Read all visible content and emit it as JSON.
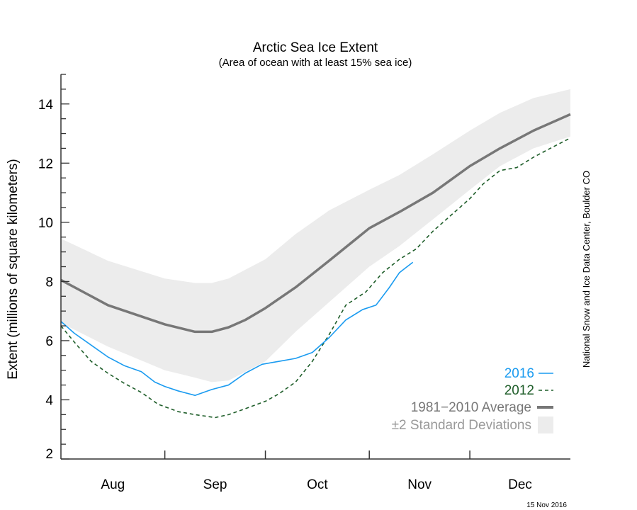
{
  "chart_data": {
    "type": "line",
    "title": "Arctic Sea Ice Extent",
    "subtitle": "(Area of ocean with at least 15% sea ice)",
    "ylabel": "Extent (millions of square kilometers)",
    "xlabel": "",
    "ylim": [
      2,
      15
    ],
    "xlim": [
      "08-01",
      "12-31"
    ],
    "yticks": [
      2,
      4,
      6,
      8,
      10,
      12,
      14
    ],
    "xtick_labels": [
      "Aug",
      "Sep",
      "Oct",
      "Nov",
      "Dec"
    ],
    "grid": false,
    "legend_position": "bottom-right",
    "credit": "National Snow and Ice Data Center, Boulder CO",
    "date_stamp": "15 Nov 2016",
    "colors": {
      "s2016": "#1a9bf0",
      "s2012": "#1f5e2a",
      "average": "#777777",
      "band": "#ececec"
    },
    "series": [
      {
        "name": "2016",
        "style": "solid",
        "x": [
          "08-01",
          "08-05",
          "08-10",
          "08-15",
          "08-20",
          "08-25",
          "08-29",
          "09-01",
          "09-05",
          "09-10",
          "09-15",
          "09-20",
          "09-25",
          "09-30",
          "10-05",
          "10-10",
          "10-15",
          "10-20",
          "10-25",
          "10-30",
          "11-03",
          "11-07",
          "11-10",
          "11-14"
        ],
        "y": [
          6.65,
          6.25,
          5.85,
          5.45,
          5.15,
          4.95,
          4.6,
          4.45,
          4.3,
          4.15,
          4.35,
          4.5,
          4.9,
          5.2,
          5.3,
          5.4,
          5.6,
          6.1,
          6.7,
          7.05,
          7.2,
          7.8,
          8.3,
          8.65
        ]
      },
      {
        "name": "2012",
        "style": "dashed",
        "x": [
          "08-01",
          "08-05",
          "08-10",
          "08-15",
          "08-20",
          "08-25",
          "08-30",
          "09-05",
          "09-10",
          "09-16",
          "09-20",
          "09-25",
          "10-01",
          "10-05",
          "10-10",
          "10-15",
          "10-20",
          "10-25",
          "10-31",
          "11-05",
          "11-10",
          "11-15",
          "11-20",
          "11-25",
          "12-01",
          "12-05",
          "12-10",
          "12-15",
          "12-20",
          "12-25",
          "12-31"
        ],
        "y": [
          6.5,
          5.95,
          5.3,
          4.9,
          4.55,
          4.25,
          3.85,
          3.6,
          3.5,
          3.4,
          3.5,
          3.7,
          3.95,
          4.2,
          4.6,
          5.3,
          6.2,
          7.2,
          7.65,
          8.3,
          8.75,
          9.1,
          9.7,
          10.2,
          10.8,
          11.3,
          11.75,
          11.85,
          12.2,
          12.5,
          12.85
        ]
      },
      {
        "name": "1981−2010 Average",
        "style": "thick",
        "x": [
          "08-01",
          "08-15",
          "09-01",
          "09-10",
          "09-15",
          "09-20",
          "09-25",
          "10-01",
          "10-10",
          "10-20",
          "11-01",
          "11-10",
          "11-20",
          "12-01",
          "12-10",
          "12-20",
          "12-31"
        ],
        "y": [
          8.05,
          7.2,
          6.55,
          6.3,
          6.3,
          6.45,
          6.7,
          7.1,
          7.8,
          8.7,
          9.8,
          10.35,
          11.0,
          11.9,
          12.5,
          13.1,
          13.65
        ]
      }
    ],
    "band": {
      "name": "±2 Standard Deviations",
      "x": [
        "08-01",
        "08-15",
        "09-01",
        "09-10",
        "09-15",
        "09-20",
        "10-01",
        "10-10",
        "10-20",
        "11-01",
        "11-10",
        "11-20",
        "12-01",
        "12-10",
        "12-20",
        "12-31"
      ],
      "upper": [
        9.45,
        8.7,
        8.1,
        7.95,
        7.95,
        8.1,
        8.75,
        9.6,
        10.4,
        11.1,
        11.6,
        12.3,
        13.1,
        13.7,
        14.2,
        14.5
      ],
      "lower": [
        6.6,
        5.8,
        5.0,
        4.75,
        4.6,
        4.65,
        5.3,
        6.3,
        7.3,
        8.5,
        9.2,
        10.1,
        11.1,
        11.9,
        12.5,
        12.9
      ]
    }
  }
}
